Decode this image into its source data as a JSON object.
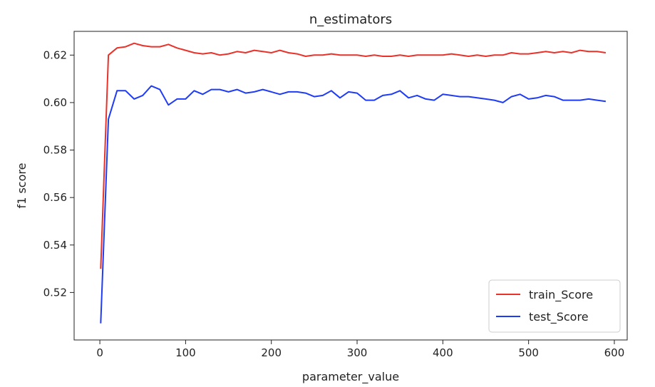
{
  "chart_data": {
    "type": "line",
    "title": "n_estimators",
    "xlabel": "parameter_value",
    "ylabel": "f1 score",
    "xlim": [
      -30,
      615
    ],
    "ylim": [
      0.5,
      0.63
    ],
    "xticks": [
      0,
      100,
      200,
      300,
      400,
      500,
      600
    ],
    "xtick_labels": [
      "0",
      "100",
      "200",
      "300",
      "400",
      "500",
      "600"
    ],
    "yticks": [
      0.52,
      0.54,
      0.56,
      0.58,
      0.6,
      0.62
    ],
    "ytick_labels": [
      "0.52",
      "0.54",
      "0.56",
      "0.58",
      "0.60",
      "0.62"
    ],
    "grid": false,
    "legend_position": "lower-right",
    "x": [
      1,
      10,
      20,
      30,
      40,
      50,
      60,
      70,
      80,
      90,
      100,
      110,
      120,
      130,
      140,
      150,
      160,
      170,
      180,
      190,
      200,
      210,
      220,
      230,
      240,
      250,
      260,
      270,
      280,
      290,
      300,
      310,
      320,
      330,
      340,
      350,
      360,
      370,
      380,
      390,
      400,
      410,
      420,
      430,
      440,
      450,
      460,
      470,
      480,
      490,
      500,
      510,
      520,
      530,
      540,
      550,
      560,
      570,
      580,
      590
    ],
    "series": [
      {
        "name": "train_Score",
        "color": "#e8322a",
        "values": [
          0.53,
          0.62,
          0.623,
          0.6235,
          0.625,
          0.624,
          0.6235,
          0.6235,
          0.6245,
          0.623,
          0.622,
          0.621,
          0.6205,
          0.621,
          0.62,
          0.6205,
          0.6215,
          0.621,
          0.622,
          0.6215,
          0.621,
          0.622,
          0.621,
          0.6205,
          0.6195,
          0.62,
          0.62,
          0.6205,
          0.62,
          0.62,
          0.62,
          0.6195,
          0.62,
          0.6195,
          0.6195,
          0.62,
          0.6195,
          0.62,
          0.62,
          0.62,
          0.62,
          0.6205,
          0.62,
          0.6195,
          0.62,
          0.6195,
          0.62,
          0.62,
          0.621,
          0.6205,
          0.6205,
          0.621,
          0.6215,
          0.621,
          0.6215,
          0.621,
          0.622,
          0.6215,
          0.6215,
          0.621
        ]
      },
      {
        "name": "test_Score",
        "color": "#1f3cf5",
        "values": [
          0.507,
          0.593,
          0.605,
          0.605,
          0.6015,
          0.603,
          0.607,
          0.6055,
          0.599,
          0.6015,
          0.6015,
          0.605,
          0.6035,
          0.6055,
          0.6055,
          0.6045,
          0.6055,
          0.604,
          0.6045,
          0.6055,
          0.6045,
          0.6035,
          0.6045,
          0.6045,
          0.604,
          0.6025,
          0.603,
          0.605,
          0.602,
          0.6045,
          0.604,
          0.601,
          0.601,
          0.603,
          0.6035,
          0.605,
          0.602,
          0.603,
          0.6015,
          0.601,
          0.6035,
          0.603,
          0.6025,
          0.6025,
          0.602,
          0.6015,
          0.601,
          0.6,
          0.6025,
          0.6035,
          0.6015,
          0.602,
          0.603,
          0.6025,
          0.601,
          0.601,
          0.601,
          0.6015,
          0.601,
          0.6005
        ]
      }
    ]
  }
}
